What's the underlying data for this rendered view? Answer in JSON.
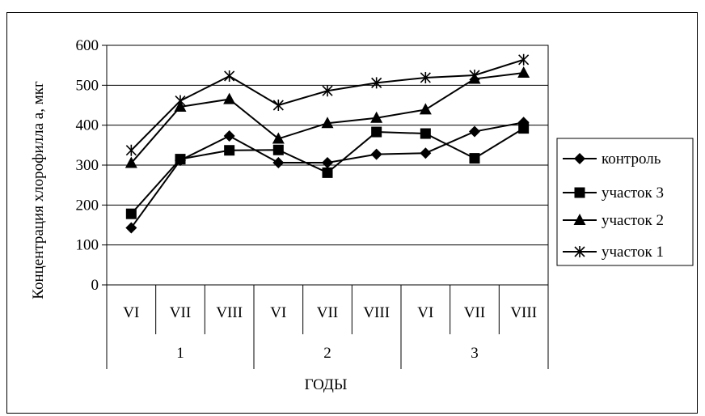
{
  "chart_data": {
    "type": "line",
    "ylabel": "Концентрация хлорофилла а, мкг",
    "xlabel": "ГОДЫ",
    "ylim": [
      0,
      600
    ],
    "yticks": [
      0,
      100,
      200,
      300,
      400,
      500,
      600
    ],
    "grid": true,
    "legend_position": "right",
    "categories": [
      "VI",
      "VII",
      "VIII",
      "VI",
      "VII",
      "VIII",
      "VI",
      "VII",
      "VIII"
    ],
    "groups": [
      {
        "label": "1",
        "span": 3
      },
      {
        "label": "2",
        "span": 3
      },
      {
        "label": "3",
        "span": 3
      }
    ],
    "series": [
      {
        "name": "контроль",
        "marker": "diamond",
        "values": [
          143,
          312,
          373,
          306,
          306,
          327,
          330,
          384,
          407
        ]
      },
      {
        "name": "участок 3",
        "marker": "square",
        "values": [
          178,
          315,
          337,
          338,
          281,
          383,
          379,
          317,
          392
        ]
      },
      {
        "name": "участок 2",
        "marker": "triangle",
        "values": [
          305,
          446,
          465,
          366,
          405,
          418,
          439,
          516,
          531
        ]
      },
      {
        "name": "участок 1",
        "marker": "star",
        "values": [
          337,
          461,
          523,
          450,
          486,
          506,
          519,
          525,
          564
        ]
      }
    ]
  }
}
